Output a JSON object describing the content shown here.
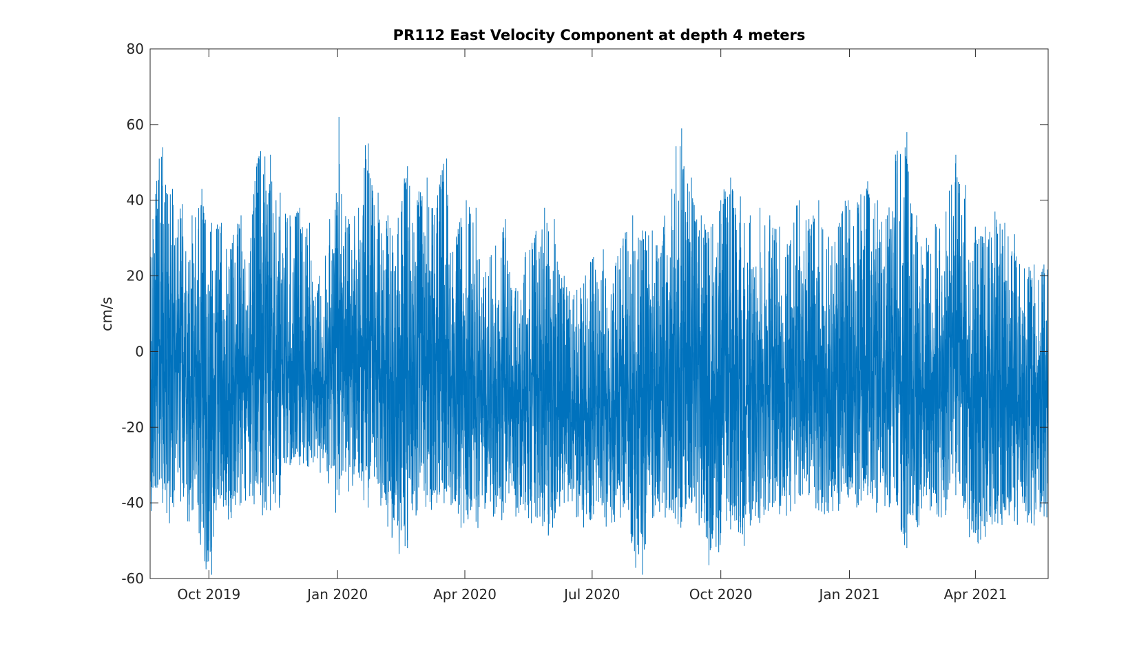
{
  "chart_data": {
    "type": "line",
    "title": "PR112 East Velocity Component at depth 4 meters",
    "xlabel": "",
    "ylabel": "cm/s",
    "ylim": [
      -60,
      80
    ],
    "xlim": [
      "2019-08-20",
      "2021-05-23"
    ],
    "y_ticks": [
      -60,
      -40,
      -20,
      0,
      20,
      40,
      60,
      80
    ],
    "y_tick_labels": [
      "-60",
      "-40",
      "-20",
      "0",
      "20",
      "40",
      "60",
      "80"
    ],
    "x_ticks": [
      "2019-10-01",
      "2020-01-01",
      "2020-04-01",
      "2020-07-01",
      "2020-10-01",
      "2021-01-01",
      "2021-04-01"
    ],
    "x_tick_labels": [
      "Oct 2019",
      "Jan 2020",
      "Apr 2020",
      "Jul 2020",
      "Oct 2020",
      "Jan 2021",
      "Apr 2021"
    ],
    "grid": false,
    "line_color": "#0072BD",
    "series": [
      {
        "name": "",
        "x": [
          "2019-08-20",
          "2019-08-27",
          "2019-09-03",
          "2019-09-10",
          "2019-09-17",
          "2019-09-24",
          "2019-10-01",
          "2019-10-08",
          "2019-10-15",
          "2019-10-22",
          "2019-10-29",
          "2019-11-05",
          "2019-11-12",
          "2019-11-19",
          "2019-11-26",
          "2019-12-03",
          "2019-12-10",
          "2019-12-17",
          "2019-12-24",
          "2019-12-31",
          "2020-01-07",
          "2020-01-14",
          "2020-01-21",
          "2020-01-28",
          "2020-02-04",
          "2020-02-11",
          "2020-02-18",
          "2020-02-25",
          "2020-03-03",
          "2020-03-10",
          "2020-03-17",
          "2020-03-24",
          "2020-03-31",
          "2020-04-07",
          "2020-04-14",
          "2020-04-21",
          "2020-04-28",
          "2020-05-05",
          "2020-05-12",
          "2020-05-19",
          "2020-05-26",
          "2020-06-02",
          "2020-06-09",
          "2020-06-16",
          "2020-06-23",
          "2020-06-30",
          "2020-07-07",
          "2020-07-14",
          "2020-07-21",
          "2020-07-28",
          "2020-08-04",
          "2020-08-11",
          "2020-08-18",
          "2020-08-25",
          "2020-09-01",
          "2020-09-08",
          "2020-09-15",
          "2020-09-22",
          "2020-09-29",
          "2020-10-06",
          "2020-10-13",
          "2020-10-20",
          "2020-10-27",
          "2020-11-03",
          "2020-11-10",
          "2020-11-17",
          "2020-11-24",
          "2020-12-01",
          "2020-12-08",
          "2020-12-15",
          "2020-12-22",
          "2020-12-29",
          "2021-01-05",
          "2021-01-12",
          "2021-01-19",
          "2021-01-26",
          "2021-02-02",
          "2021-02-09",
          "2021-02-16",
          "2021-02-23",
          "2021-03-02",
          "2021-03-09",
          "2021-03-16",
          "2021-03-23",
          "2021-03-30",
          "2021-04-06",
          "2021-04-13",
          "2021-04-20",
          "2021-04-27",
          "2021-05-04",
          "2021-05-11",
          "2021-05-18"
        ],
        "y_max": [
          35,
          54,
          43,
          39,
          36,
          43,
          34,
          34,
          27,
          36,
          30,
          53,
          52,
          42,
          36,
          38,
          34,
          20,
          26,
          62,
          35,
          38,
          55,
          42,
          36,
          31,
          49,
          40,
          46,
          38,
          51,
          30,
          40,
          38,
          21,
          28,
          35,
          16,
          25,
          30,
          38,
          35,
          20,
          15,
          18,
          25,
          27,
          18,
          28,
          36,
          32,
          32,
          28,
          43,
          59,
          46,
          36,
          33,
          40,
          46,
          41,
          36,
          38,
          36,
          33,
          28,
          40,
          35,
          40,
          30,
          33,
          40,
          38,
          45,
          40,
          36,
          52,
          58,
          36,
          30,
          33,
          37,
          52,
          44,
          33,
          33,
          37,
          34,
          31,
          22,
          23,
          23
        ],
        "y_min": [
          -36,
          -40,
          -40,
          -34,
          -42,
          -45,
          -59,
          -38,
          -44,
          -40,
          -35,
          -38,
          -42,
          -38,
          -30,
          -30,
          -25,
          -25,
          -30,
          -38,
          -37,
          -32,
          -36,
          -35,
          -40,
          -46,
          -52,
          -42,
          -38,
          -40,
          -37,
          -38,
          -42,
          -45,
          -40,
          -38,
          -40,
          -38,
          -42,
          -40,
          -42,
          -44,
          -40,
          -36,
          -41,
          -43,
          -40,
          -42,
          -38,
          -49,
          -59,
          -38,
          -40,
          -42,
          -45,
          -40,
          -44,
          -52,
          -48,
          -47,
          -48,
          -46,
          -44,
          -40,
          -43,
          -38,
          -38,
          -38,
          -42,
          -40,
          -36,
          -38,
          -40,
          -38,
          -40,
          -38,
          -38,
          -52,
          -45,
          -38,
          -40,
          -42,
          -38,
          -40,
          -48,
          -49,
          -45,
          -42,
          -42,
          -40,
          -46,
          -40
        ]
      }
    ]
  }
}
